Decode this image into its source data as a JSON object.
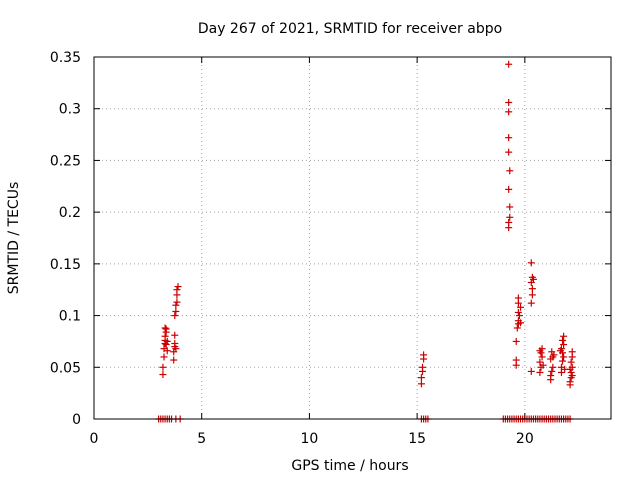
{
  "chart_data": {
    "type": "scatter",
    "title": "Day 267 of 2021, SRMTID for receiver abpo",
    "xlabel": "GPS time / hours",
    "ylabel": "SRMTID / TECUs",
    "xlim": [
      0,
      24
    ],
    "ylim": [
      0,
      0.35
    ],
    "xticks": [
      0,
      5,
      10,
      15,
      20
    ],
    "xtick_labels": [
      "0",
      "5",
      "10",
      "15",
      "20"
    ],
    "yticks": [
      0,
      0.05,
      0.1,
      0.15,
      0.2,
      0.25,
      0.3,
      0.35
    ],
    "ytick_labels": [
      "0",
      "0.05",
      "0.1",
      "0.15",
      "0.2",
      "0.25",
      "0.3",
      "0.35"
    ],
    "grid": true,
    "marker": "+",
    "color": "#cc0000",
    "series": [
      {
        "name": "SRMTID",
        "points": [
          [
            3.0,
            0
          ],
          [
            3.1,
            0
          ],
          [
            3.2,
            0
          ],
          [
            3.3,
            0
          ],
          [
            3.4,
            0
          ],
          [
            3.5,
            0
          ],
          [
            3.6,
            0
          ],
          [
            3.8,
            0
          ],
          [
            4.0,
            0
          ],
          [
            15.2,
            0
          ],
          [
            15.3,
            0
          ],
          [
            15.4,
            0
          ],
          [
            15.5,
            0
          ],
          [
            19.0,
            0
          ],
          [
            19.1,
            0
          ],
          [
            19.2,
            0
          ],
          [
            19.3,
            0
          ],
          [
            19.4,
            0
          ],
          [
            19.5,
            0
          ],
          [
            19.6,
            0
          ],
          [
            19.7,
            0
          ],
          [
            19.8,
            0
          ],
          [
            19.9,
            0
          ],
          [
            20.0,
            0
          ],
          [
            20.1,
            0
          ],
          [
            20.2,
            0
          ],
          [
            20.3,
            0
          ],
          [
            20.4,
            0
          ],
          [
            20.5,
            0
          ],
          [
            20.6,
            0
          ],
          [
            20.7,
            0
          ],
          [
            20.8,
            0
          ],
          [
            20.9,
            0
          ],
          [
            21.0,
            0
          ],
          [
            21.1,
            0
          ],
          [
            21.2,
            0
          ],
          [
            21.3,
            0
          ],
          [
            21.4,
            0
          ],
          [
            21.5,
            0
          ],
          [
            21.6,
            0
          ],
          [
            21.7,
            0
          ],
          [
            21.8,
            0
          ],
          [
            21.9,
            0
          ],
          [
            22.0,
            0
          ],
          [
            22.1,
            0
          ],
          [
            3.2,
            0.043
          ],
          [
            3.2,
            0.05
          ],
          [
            3.25,
            0.06
          ],
          [
            3.25,
            0.068
          ],
          [
            3.3,
            0.073
          ],
          [
            3.3,
            0.076
          ],
          [
            3.3,
            0.08
          ],
          [
            3.35,
            0.084
          ],
          [
            3.35,
            0.087
          ],
          [
            3.3,
            0.088
          ],
          [
            3.4,
            0.066
          ],
          [
            3.4,
            0.075
          ],
          [
            3.35,
            0.072
          ],
          [
            3.7,
            0.057
          ],
          [
            3.7,
            0.065
          ],
          [
            3.75,
            0.07
          ],
          [
            3.75,
            0.073
          ],
          [
            3.8,
            0.068
          ],
          [
            3.75,
            0.081
          ],
          [
            3.75,
            0.1
          ],
          [
            3.8,
            0.104
          ],
          [
            3.8,
            0.11
          ],
          [
            3.85,
            0.113
          ],
          [
            3.85,
            0.12
          ],
          [
            3.85,
            0.125
          ],
          [
            3.9,
            0.128
          ],
          [
            15.2,
            0.034
          ],
          [
            15.2,
            0.04
          ],
          [
            15.25,
            0.046
          ],
          [
            15.25,
            0.05
          ],
          [
            15.3,
            0.058
          ],
          [
            15.3,
            0.062
          ],
          [
            19.25,
            0.185
          ],
          [
            19.25,
            0.19
          ],
          [
            19.3,
            0.195
          ],
          [
            19.3,
            0.205
          ],
          [
            19.25,
            0.222
          ],
          [
            19.3,
            0.24
          ],
          [
            19.25,
            0.258
          ],
          [
            19.25,
            0.272
          ],
          [
            19.25,
            0.297
          ],
          [
            19.25,
            0.306
          ],
          [
            19.25,
            0.343
          ],
          [
            19.6,
            0.052
          ],
          [
            19.6,
            0.057
          ],
          [
            19.6,
            0.075
          ],
          [
            19.65,
            0.088
          ],
          [
            19.7,
            0.092
          ],
          [
            19.7,
            0.095
          ],
          [
            19.75,
            0.1
          ],
          [
            19.7,
            0.103
          ],
          [
            19.8,
            0.108
          ],
          [
            19.7,
            0.112
          ],
          [
            19.7,
            0.117
          ],
          [
            19.8,
            0.093
          ],
          [
            20.3,
            0.046
          ],
          [
            20.3,
            0.112
          ],
          [
            20.35,
            0.12
          ],
          [
            20.35,
            0.126
          ],
          [
            20.3,
            0.132
          ],
          [
            20.35,
            0.137
          ],
          [
            20.4,
            0.135
          ],
          [
            20.3,
            0.151
          ],
          [
            20.7,
            0.045
          ],
          [
            20.75,
            0.05
          ],
          [
            20.7,
            0.055
          ],
          [
            20.8,
            0.06
          ],
          [
            20.75,
            0.064
          ],
          [
            20.8,
            0.068
          ],
          [
            20.7,
            0.066
          ],
          [
            20.85,
            0.052
          ],
          [
            21.2,
            0.038
          ],
          [
            21.2,
            0.042
          ],
          [
            21.25,
            0.046
          ],
          [
            21.3,
            0.05
          ],
          [
            21.2,
            0.058
          ],
          [
            21.3,
            0.06
          ],
          [
            21.25,
            0.065
          ],
          [
            21.35,
            0.062
          ],
          [
            21.7,
            0.045
          ],
          [
            21.7,
            0.05
          ],
          [
            21.75,
            0.056
          ],
          [
            21.8,
            0.06
          ],
          [
            21.75,
            0.064
          ],
          [
            21.7,
            0.068
          ],
          [
            21.8,
            0.072
          ],
          [
            21.75,
            0.076
          ],
          [
            21.8,
            0.08
          ],
          [
            21.85,
            0.048
          ],
          [
            21.65,
            0.066
          ],
          [
            22.1,
            0.033
          ],
          [
            22.1,
            0.036
          ],
          [
            22.15,
            0.04
          ],
          [
            22.2,
            0.042
          ],
          [
            22.15,
            0.045
          ],
          [
            22.1,
            0.048
          ],
          [
            22.2,
            0.05
          ],
          [
            22.15,
            0.055
          ],
          [
            22.2,
            0.06
          ],
          [
            22.2,
            0.065
          ]
        ]
      }
    ]
  }
}
